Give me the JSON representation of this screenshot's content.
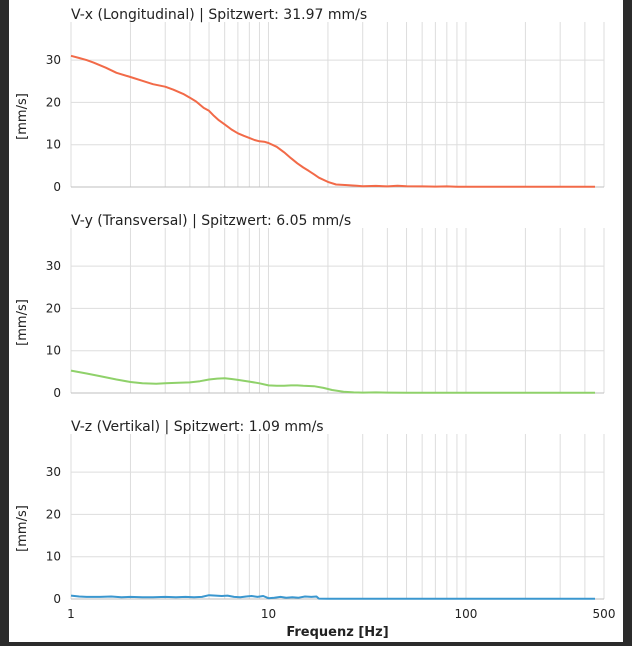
{
  "chart_data": [
    {
      "type": "line",
      "title": "V-x (Longitudinal) | Spitzwert: 31.97 mm/s",
      "ylabel": "[mm/s]",
      "xlabel": "",
      "xscale": "log",
      "xlim": [
        1,
        500
      ],
      "ylim": [
        0,
        39
      ],
      "yticks": [
        0,
        10,
        20,
        30
      ],
      "grid": true,
      "color": "#f26a48",
      "series": [
        {
          "x": [
            1,
            1.1,
            1.2,
            1.3,
            1.5,
            1.7,
            2,
            2.3,
            2.6,
            3,
            3.3,
            3.7,
            4,
            4.3,
            4.7,
            5,
            5.3,
            5.6,
            6,
            6.5,
            7,
            7.5,
            8,
            8.5,
            9,
            9.5,
            10,
            11,
            12,
            13,
            14,
            15,
            16,
            17,
            18,
            20,
            22,
            25,
            28,
            30,
            35,
            40,
            45,
            50,
            60,
            70,
            80,
            90,
            100,
            150,
            200,
            300,
            450
          ],
          "y": [
            31.0,
            30.5,
            30.0,
            29.4,
            28.2,
            27.0,
            26.0,
            25.1,
            24.3,
            23.7,
            23.0,
            22.0,
            21.1,
            20.2,
            18.7,
            18.0,
            16.8,
            15.8,
            14.8,
            13.6,
            12.7,
            12.1,
            11.6,
            11.1,
            10.8,
            10.7,
            10.4,
            9.5,
            8.2,
            6.8,
            5.6,
            4.6,
            3.8,
            3.0,
            2.2,
            1.2,
            0.6,
            0.45,
            0.3,
            0.2,
            0.25,
            0.15,
            0.3,
            0.2,
            0.15,
            0.1,
            0.15,
            0.05,
            0.05,
            0.05,
            0.05,
            0.05,
            0.05
          ]
        }
      ]
    },
    {
      "type": "line",
      "title": "V-y (Transversal) | Spitzwert: 6.05 mm/s",
      "ylabel": "[mm/s]",
      "xlabel": "",
      "xscale": "log",
      "xlim": [
        1,
        500
      ],
      "ylim": [
        0,
        39
      ],
      "yticks": [
        0,
        10,
        20,
        30
      ],
      "grid": true,
      "color": "#8fd16a",
      "series": [
        {
          "x": [
            1,
            1.2,
            1.4,
            1.7,
            2,
            2.3,
            2.7,
            3,
            3.5,
            4,
            4.5,
            5,
            5.5,
            6,
            6.5,
            7,
            8,
            9,
            10,
            11,
            12,
            13,
            14,
            15,
            17,
            19,
            21,
            24,
            27,
            30,
            35,
            40,
            50,
            60,
            80,
            100,
            150,
            200,
            300,
            450
          ],
          "y": [
            5.3,
            4.6,
            4.0,
            3.2,
            2.6,
            2.3,
            2.2,
            2.3,
            2.4,
            2.5,
            2.8,
            3.2,
            3.4,
            3.5,
            3.3,
            3.1,
            2.7,
            2.3,
            1.8,
            1.7,
            1.7,
            1.8,
            1.8,
            1.7,
            1.6,
            1.2,
            0.7,
            0.3,
            0.15,
            0.1,
            0.15,
            0.1,
            0.05,
            0.05,
            0.05,
            0.05,
            0.05,
            0.05,
            0.05,
            0.05
          ]
        }
      ]
    },
    {
      "type": "line",
      "title": "V-z (Vertikal) | Spitzwert: 1.09 mm/s",
      "ylabel": "[mm/s]",
      "xlabel": "Frequenz [Hz]",
      "xscale": "log",
      "xlim": [
        1,
        500
      ],
      "ylim": [
        0,
        39
      ],
      "yticks": [
        0,
        10,
        20,
        30
      ],
      "xticks": [
        1,
        10,
        100,
        500
      ],
      "xticklabels": [
        "1",
        "10",
        "100",
        "500"
      ],
      "grid": true,
      "color": "#3a97cf",
      "series": [
        {
          "x": [
            1,
            1.1,
            1.2,
            1.4,
            1.6,
            1.8,
            2,
            2.3,
            2.6,
            3,
            3.4,
            3.8,
            4.2,
            4.6,
            5,
            5.4,
            5.8,
            6.2,
            6.7,
            7.2,
            7.7,
            8.2,
            8.8,
            9.4,
            10,
            10.7,
            11.5,
            12.3,
            13.2,
            14.2,
            15.3,
            16.5,
            17.5,
            18,
            20,
            25,
            30,
            40,
            50,
            70,
            100,
            150,
            200,
            300,
            450
          ],
          "y": [
            0.8,
            0.6,
            0.5,
            0.5,
            0.6,
            0.4,
            0.5,
            0.4,
            0.4,
            0.5,
            0.4,
            0.5,
            0.4,
            0.5,
            0.9,
            0.8,
            0.7,
            0.8,
            0.5,
            0.4,
            0.6,
            0.7,
            0.5,
            0.7,
            0.2,
            0.3,
            0.5,
            0.3,
            0.4,
            0.3,
            0.6,
            0.5,
            0.6,
            0.1,
            0.05,
            0.05,
            0.05,
            0.05,
            0.05,
            0.05,
            0.05,
            0.05,
            0.05,
            0.05,
            0.05
          ]
        }
      ]
    }
  ]
}
